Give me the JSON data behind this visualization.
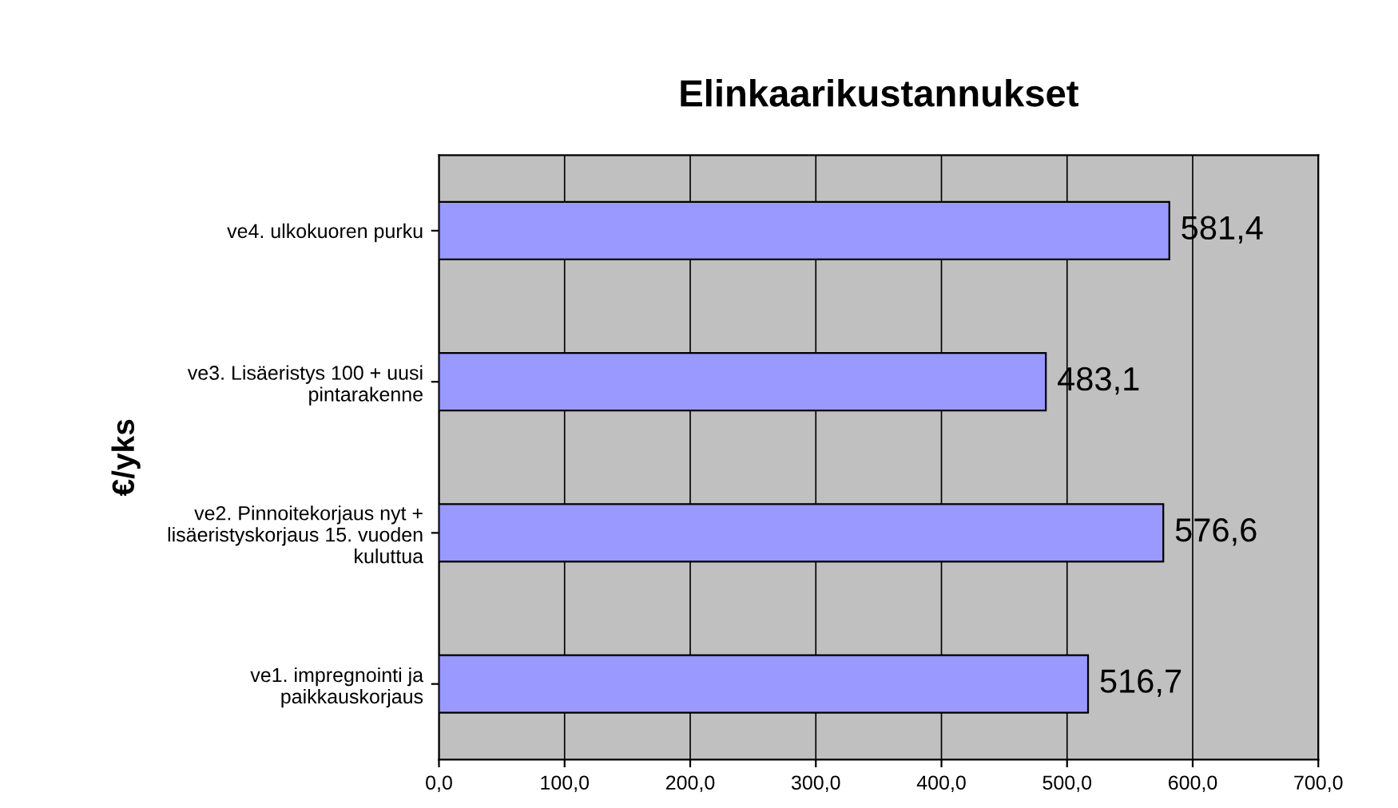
{
  "chart_data": {
    "type": "bar",
    "orientation": "horizontal",
    "title": "Elinkaarikustannukset",
    "ylabel": "€/yks",
    "categories": [
      "ve4. ulkokuoren purku",
      "ve3. Lisäeristys 100 + uusi\npintarakenne",
      "ve2. Pinnoitekorjaus nyt +\nlisäeristyskorjaus 15. vuoden\nkuluttua",
      "ve1. impregnointi ja\npaikkauskorjaus"
    ],
    "values": [
      581.4,
      483.1,
      576.6,
      516.7
    ],
    "value_labels": [
      "581,4",
      "483,1",
      "576,6",
      "516,7"
    ],
    "color": "#9999ff",
    "xlim": [
      0,
      700
    ],
    "xticks": [
      {
        "value": 0,
        "label": "0,0"
      },
      {
        "value": 100,
        "label": "100,0"
      },
      {
        "value": 200,
        "label": "200,0"
      },
      {
        "value": 300,
        "label": "300,0"
      },
      {
        "value": 400,
        "label": "400,0"
      },
      {
        "value": 500,
        "label": "500,0"
      },
      {
        "value": 600,
        "label": "600,0"
      },
      {
        "value": 700,
        "label": "700,0"
      }
    ],
    "grid": "x",
    "legend": false
  }
}
